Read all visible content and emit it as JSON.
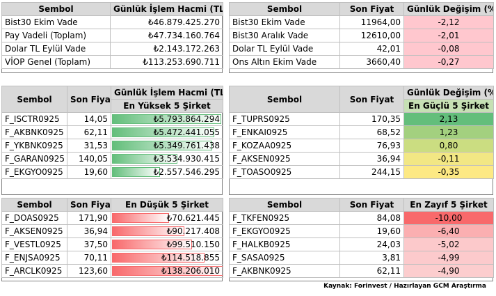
{
  "colors": {
    "header_bg": "#d9d9d9",
    "neg_light": "#ffc7ce",
    "green_bar": "#63be7b",
    "red_bar": "#f8696b"
  },
  "t1": {
    "headers": [
      "Sembol",
      "Günlük İşlem Hacmi (TL)"
    ],
    "rows": [
      {
        "sym": "Bist30 Ekim Vade",
        "val": "₺46.879.425.270"
      },
      {
        "sym": "Pay Vadeli (Toplam)",
        "val": "₺47.734.160.764"
      },
      {
        "sym": "Dolar TL Eylül Vade",
        "val": "₺2.143.172.263"
      },
      {
        "sym": "VİOP Genel (Toplam)",
        "val": "₺113.253.690.711"
      }
    ]
  },
  "t2": {
    "headers": [
      "Sembol",
      "Son Fiyat",
      "Günlük Değişim (%)"
    ],
    "rows": [
      {
        "sym": "Bist30 Ekim Vade",
        "price": "11964,00",
        "chg": "-2,12"
      },
      {
        "sym": "Bist30 Aralık Vade",
        "price": "12610,00",
        "chg": "-2,01"
      },
      {
        "sym": "Dolar TL Eylül Vade",
        "price": "42,01",
        "chg": "-0,08"
      },
      {
        "sym": "Ons Altın Ekim Vade",
        "price": "3660,40",
        "chg": "-0,27"
      }
    ]
  },
  "t3": {
    "headers": [
      "Sembol",
      "Son Fiyat",
      "Günlük İşlem Hacmi (TL)"
    ],
    "subheader": "En Yüksek 5 Şirket",
    "rows": [
      {
        "sym": "F_ISCTR0925",
        "price": "14,05",
        "vol": "₺5.793.864.294",
        "level": 0.98
      },
      {
        "sym": "F_AKBNK0925",
        "price": "62,11",
        "vol": "₺5.472.441.055",
        "level": 0.92
      },
      {
        "sym": "F_YKBNK0925",
        "price": "31,53",
        "vol": "₺5.349.761.438",
        "level": 0.9
      },
      {
        "sym": "F_GARAN0925",
        "price": "140,05",
        "vol": "₺3.534.930.415",
        "level": 0.59
      },
      {
        "sym": "F_EKGYO0925",
        "price": "19,60",
        "vol": "₺2.557.546.295",
        "level": 0.43
      }
    ]
  },
  "t4": {
    "headers": [
      "Sembol",
      "Son Fiyat",
      "Günlük Değişim (%)"
    ],
    "subheader": "En Güçlü 5 Şirket",
    "rows": [
      {
        "sym": "F_TUPRS0925",
        "price": "170,35",
        "chg": "2,13",
        "color": "#63be7b"
      },
      {
        "sym": "F_ENKAI0925",
        "price": "68,52",
        "chg": "1,23",
        "color": "#a3d07f"
      },
      {
        "sym": "F_KOZAA0925",
        "price": "76,93",
        "chg": "0,80",
        "color": "#cbdd81"
      },
      {
        "sym": "F_AKSEN0925",
        "price": "36,94",
        "chg": "-0,11",
        "color": "#f2e784"
      },
      {
        "sym": "F_TOASO0925",
        "price": "244,15",
        "chg": "-0,35",
        "color": "#fde984"
      }
    ]
  },
  "t5": {
    "headers": [
      "Sembol",
      "Son Fiyat",
      "En Düşük 5 Şirket"
    ],
    "rows": [
      {
        "sym": "F_DOAS0925",
        "price": "171,90",
        "vol": "₺70.621.445",
        "level": 0.51
      },
      {
        "sym": "F_AKSEN0925",
        "price": "36,94",
        "vol": "₺90.217.408",
        "level": 0.65
      },
      {
        "sym": "F_VESTL0925",
        "price": "37,50",
        "vol": "₺99.510.150",
        "level": 0.72
      },
      {
        "sym": "F_ENJSA0925",
        "price": "70,11",
        "vol": "₺114.518.855",
        "level": 0.83
      },
      {
        "sym": "F_ARCLK0925",
        "price": "123,60",
        "vol": "₺138.206.010",
        "level": 1.0
      }
    ]
  },
  "t6": {
    "headers": [
      "Sembol",
      "Son Fiyat",
      "En Zayıf 5 Şirket"
    ],
    "rows": [
      {
        "sym": "F_TKFEN0925",
        "price": "84,08",
        "chg": "-10,00",
        "color": "#f8696b"
      },
      {
        "sym": "F_EKGYO0925",
        "price": "19,60",
        "chg": "-6,40",
        "color": "#fbafb1"
      },
      {
        "sym": "F_HALKB0925",
        "price": "24,03",
        "chg": "-5,02",
        "color": "#fcc9cb"
      },
      {
        "sym": "F_SASA0925",
        "price": "3,81",
        "chg": "-4,99",
        "color": "#fccacc"
      },
      {
        "sym": "F_AKBNK0925",
        "price": "62,11",
        "chg": "-4,90",
        "color": "#fccdce"
      }
    ]
  },
  "source": "Kaynak: Forinvest / Hazırlayan GCM Araştırma"
}
